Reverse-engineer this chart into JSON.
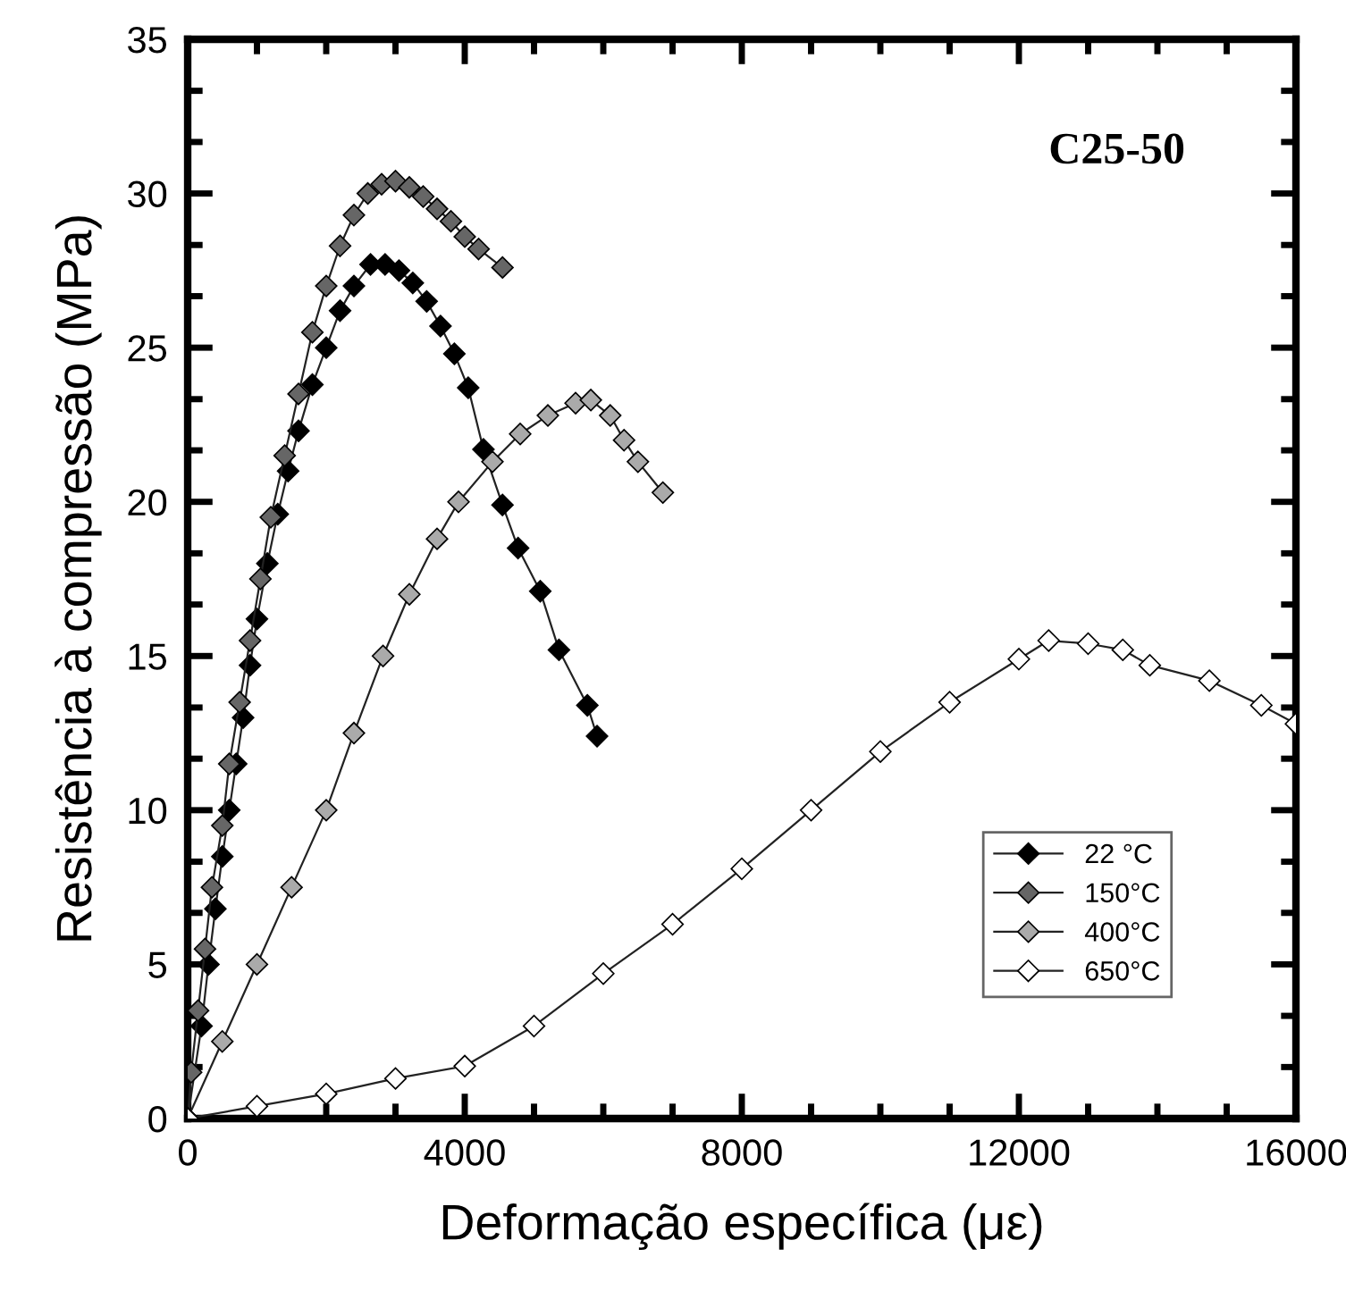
{
  "chart_data": {
    "type": "line",
    "xlabel": "Deformação específica (με)",
    "ylabel": "Resistência à compressão (MPa)",
    "annotations": [
      "C25-50"
    ],
    "xlim": [
      0,
      16000
    ],
    "ylim": [
      0,
      35
    ],
    "xticks": [
      0,
      {
        "value": 1000,
        "label": null
      },
      {
        "value": 2000,
        "label": null
      },
      {
        "value": 3000,
        "label": null
      },
      4000,
      {
        "value": 5000,
        "label": null
      },
      {
        "value": 6000,
        "label": null
      },
      {
        "value": 7000,
        "label": null
      },
      8000,
      {
        "value": 9000,
        "label": null
      },
      {
        "value": 10000,
        "label": null
      },
      {
        "value": 11000,
        "label": null
      },
      12000,
      {
        "value": 13000,
        "label": null
      },
      {
        "value": 14000,
        "label": null
      },
      {
        "value": 15000,
        "label": null
      },
      16000
    ],
    "yticks": [
      0,
      {
        "value": 1.67,
        "label": null
      },
      {
        "value": 3.33,
        "label": null
      },
      5,
      {
        "value": 6.67,
        "label": null
      },
      {
        "value": 8.33,
        "label": null
      },
      10,
      {
        "value": 11.67,
        "label": null
      },
      {
        "value": 13.33,
        "label": null
      },
      15,
      {
        "value": 16.67,
        "label": null
      },
      {
        "value": 18.33,
        "label": null
      },
      20,
      {
        "value": 21.67,
        "label": null
      },
      {
        "value": 23.33,
        "label": null
      },
      25,
      {
        "value": 26.67,
        "label": null
      },
      {
        "value": 28.33,
        "label": null
      },
      30,
      {
        "value": 31.67,
        "label": null
      },
      {
        "value": 33.33,
        "label": null
      },
      35
    ],
    "grid": false,
    "legend": "bottom right",
    "marker": "diamond",
    "line_style": "solid",
    "series": [
      {
        "name": "22 °C",
        "color": "#000000",
        "x": [
          0,
          200,
          300,
          400,
          500,
          600,
          700,
          800,
          900,
          1000,
          1150,
          1300,
          1450,
          1600,
          1800,
          2000,
          2200,
          2400,
          2640,
          2850,
          3050,
          3250,
          3450,
          3650,
          3850,
          4050,
          4270,
          4545,
          4770,
          5090,
          5360,
          5770,
          5910
        ],
        "values": [
          0,
          3,
          5,
          6.8,
          8.5,
          10,
          11.5,
          13,
          14.7,
          16.2,
          18,
          19.6,
          21,
          22.3,
          23.8,
          25,
          26.2,
          27,
          27.7,
          27.7,
          27.5,
          27.1,
          26.5,
          25.7,
          24.8,
          23.7,
          21.7,
          19.9,
          18.5,
          17.1,
          15.2,
          13.4,
          12.4
        ]
      },
      {
        "name": "150°C",
        "color": "#666666",
        "x": [
          0,
          50,
          150,
          250,
          350,
          500,
          600,
          750,
          900,
          1050,
          1200,
          1400,
          1600,
          1800,
          2000,
          2200,
          2400,
          2600,
          2800,
          3000,
          3200,
          3400,
          3600,
          3800,
          4000,
          4200,
          4545
        ],
        "values": [
          0,
          1.5,
          3.5,
          5.5,
          7.5,
          9.5,
          11.5,
          13.5,
          15.5,
          17.5,
          19.5,
          21.5,
          23.5,
          25.5,
          27,
          28.3,
          29.3,
          30,
          30.3,
          30.4,
          30.2,
          29.9,
          29.5,
          29.1,
          28.6,
          28.2,
          27.6
        ]
      },
      {
        "name": "400°C",
        "color": "#aaaaaa",
        "x": [
          0,
          500,
          1000,
          1500,
          2000,
          2400,
          2820,
          3200,
          3600,
          3910,
          4400,
          4800,
          5200,
          5600,
          5820,
          6100,
          6300,
          6500,
          6860
        ],
        "values": [
          0,
          2.5,
          5,
          7.5,
          10,
          12.5,
          15,
          17,
          18.8,
          20,
          21.3,
          22.2,
          22.8,
          23.2,
          23.3,
          22.8,
          22,
          21.3,
          20.3
        ]
      },
      {
        "name": "650°C",
        "color": "#ffffff",
        "x": [
          0,
          1000,
          2000,
          3000,
          4000,
          5000,
          6000,
          7000,
          8000,
          9000,
          10000,
          11000,
          12000,
          12430,
          13000,
          13500,
          13890,
          14750,
          15500,
          16000
        ],
        "values": [
          0,
          0.4,
          0.8,
          1.3,
          1.7,
          3.0,
          4.7,
          6.3,
          8.1,
          10.0,
          11.9,
          13.5,
          14.9,
          15.5,
          15.4,
          15.2,
          14.7,
          14.2,
          13.4,
          12.8
        ]
      }
    ]
  }
}
